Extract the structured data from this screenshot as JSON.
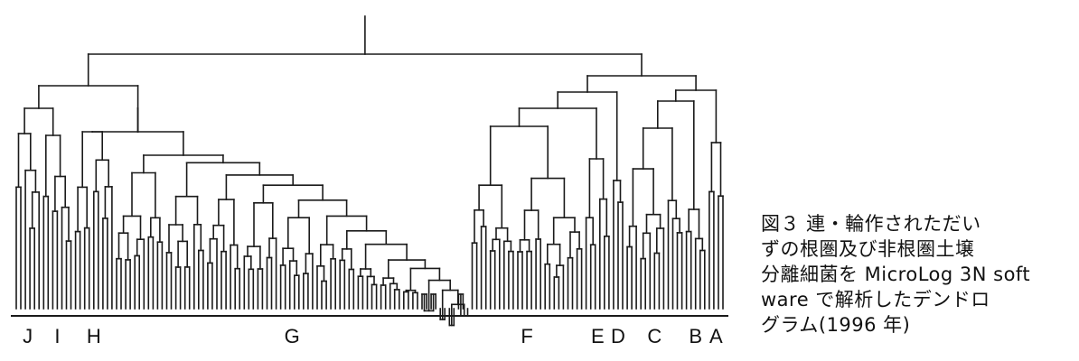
{
  "groups": [
    {
      "label": "J",
      "start": 0,
      "end": 5
    },
    {
      "label": "I",
      "start": 6,
      "end": 12
    },
    {
      "label": "H",
      "start": 13,
      "end": 21
    },
    {
      "label": "G",
      "start": 22,
      "end": 99
    },
    {
      "label": "F",
      "start": 100,
      "end": 124
    },
    {
      "label": "E",
      "start": 125,
      "end": 130
    },
    {
      "label": "D",
      "start": 131,
      "end": 133
    },
    {
      "label": "C",
      "start": 134,
      "end": 146
    },
    {
      "label": "B",
      "start": 147,
      "end": 151
    },
    {
      "label": "A",
      "start": 152,
      "end": 155
    }
  ],
  "leaf_count": 156,
  "caption": {
    "line1": "図３ 連・輪作されただい",
    "line2": "ずの根圏及び非根圏土壌",
    "line3": "分離細菌を MicroLog 3N soft",
    "line4": "ware で解析したデンドロ",
    "line5": "グラム(1996 年)"
  }
}
